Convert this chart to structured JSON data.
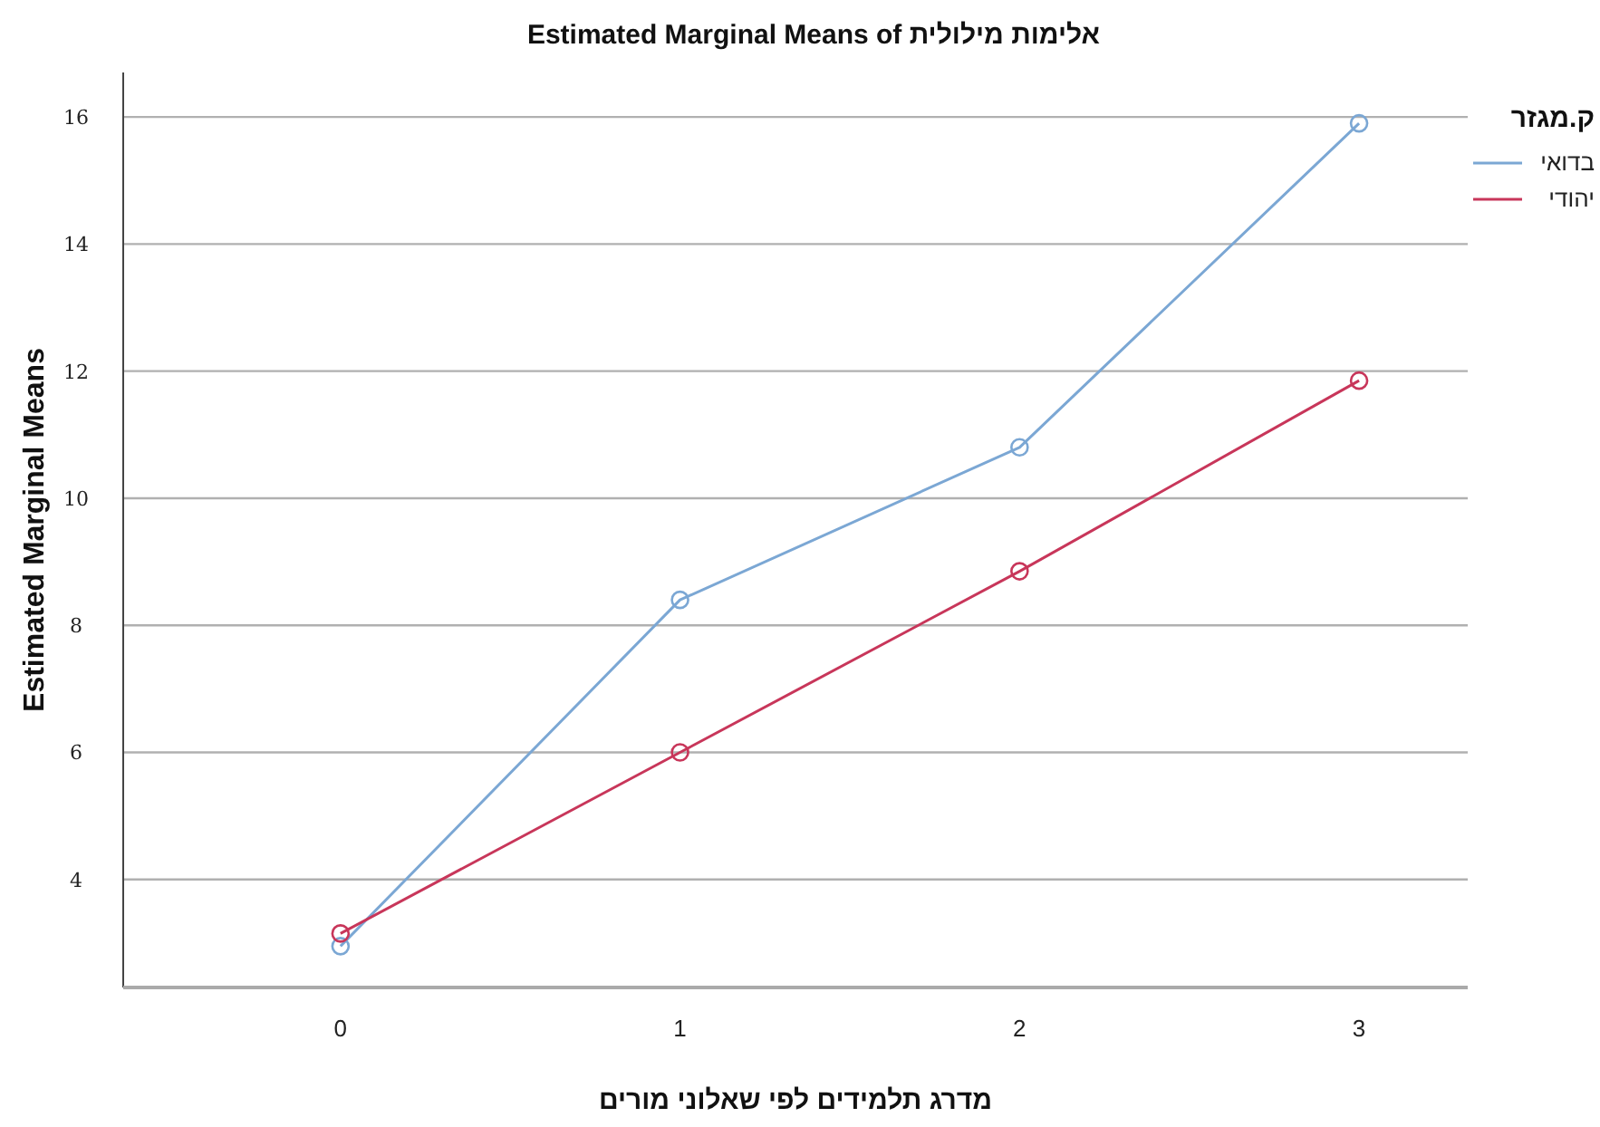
{
  "chart_data": {
    "type": "line",
    "title": "Estimated Marginal Means of אלימות מילולית",
    "xlabel": "מדרג תלמידים לפי שאלוני מורים",
    "ylabel": "Estimated Marginal Means",
    "legend_title": "ק.מגזר",
    "categories": [
      "0",
      "1",
      "2",
      "3"
    ],
    "series": [
      {
        "name": "בדואי",
        "color": "#7ba7d4",
        "values": [
          2.95,
          8.4,
          10.8,
          15.9
        ]
      },
      {
        "name": "יהודי",
        "color": "#c8365a",
        "values": [
          3.15,
          6.0,
          8.85,
          11.85
        ]
      }
    ],
    "ylim": [
      2.3,
      16.7
    ],
    "yticks": [
      4,
      6,
      8,
      10,
      12,
      14,
      16
    ],
    "grid": "y",
    "legend": "top right",
    "marker": "circle"
  }
}
